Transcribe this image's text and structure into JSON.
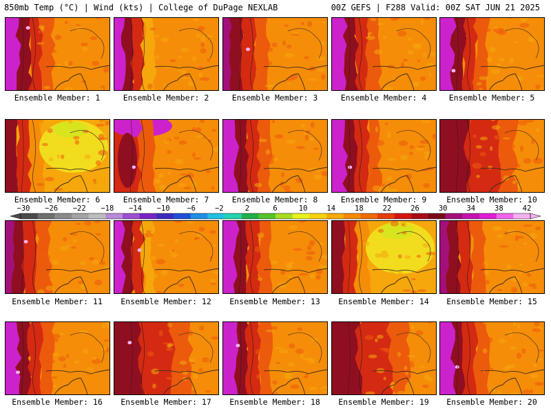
{
  "header": {
    "left": "850mb Temp (°C) | Wind (kts) | College of DuPage NEXLAB",
    "right": "00Z GEFS | F288 Valid: 00Z SAT JUN 21 2025"
  },
  "caption_prefix": "Ensemble Member: ",
  "members": [
    {
      "label": "Ensemble Member: 1",
      "member": 1,
      "style": "warm_orange_west_magenta"
    },
    {
      "label": "Ensemble Member: 2",
      "member": 2,
      "style": "magenta_west_yellow_band"
    },
    {
      "label": "Ensemble Member: 3",
      "member": 3,
      "style": "dark_red_west"
    },
    {
      "label": "Ensemble Member: 4",
      "member": 4,
      "style": "magenta_west_orange"
    },
    {
      "label": "Ensemble Member: 5",
      "member": 5,
      "style": "magenta_west_orange"
    },
    {
      "label": "Ensemble Member: 6",
      "member": 6,
      "style": "yellow_cool_center"
    },
    {
      "label": "Ensemble Member: 7",
      "member": 7,
      "style": "magenta_north_orange"
    },
    {
      "label": "Ensemble Member: 8",
      "member": 8,
      "style": "magenta_west_orange"
    },
    {
      "label": "Ensemble Member: 9",
      "member": 9,
      "style": "magenta_west_orange"
    },
    {
      "label": "Ensemble Member: 10",
      "member": 10,
      "style": "red_dominant"
    },
    {
      "label": "Ensemble Member: 11",
      "member": 11,
      "style": "dark_red_west"
    },
    {
      "label": "Ensemble Member: 12",
      "member": 12,
      "style": "magenta_west_yellow_band"
    },
    {
      "label": "Ensemble Member: 13",
      "member": 13,
      "style": "magenta_west_orange"
    },
    {
      "label": "Ensemble Member: 14",
      "member": 14,
      "style": "yellow_cool_center"
    },
    {
      "label": "Ensemble Member: 15",
      "member": 15,
      "style": "dark_red_west"
    },
    {
      "label": "Ensemble Member: 16",
      "member": 16,
      "style": "magenta_west_orange"
    },
    {
      "label": "Ensemble Member: 17",
      "member": 17,
      "style": "red_dominant"
    },
    {
      "label": "Ensemble Member: 18",
      "member": 18,
      "style": "magenta_west_orange"
    },
    {
      "label": "Ensemble Member: 19",
      "member": 19,
      "style": "red_dominant"
    },
    {
      "label": "Ensemble Member: 20",
      "member": 20,
      "style": "magenta_west_orange"
    }
  ],
  "colorbar": {
    "units": "°C",
    "labels": [
      "−30",
      "−26",
      "−22",
      "−18",
      "−14",
      "−10",
      "−6",
      "−2",
      "2",
      "6",
      "10",
      "14",
      "18",
      "22",
      "26",
      "30",
      "34",
      "38",
      "42"
    ],
    "colors": [
      "#4a4a4a",
      "#6f6f6f",
      "#8a8a8a",
      "#a3a3a3",
      "#bdbdbd",
      "#b98ad9",
      "#9b4fd1",
      "#7a22c4",
      "#3b2bbd",
      "#1e4fd8",
      "#1f8fe6",
      "#22c0e0",
      "#22d4b0",
      "#21b04a",
      "#58c22a",
      "#a8dc22",
      "#e8f21e",
      "#f7d20f",
      "#f7ab09",
      "#f58a06",
      "#f06a08",
      "#e63d0c",
      "#d4150f",
      "#a80c14",
      "#7a0a18",
      "#a4107a",
      "#c512b0",
      "#e01cd5",
      "#f064ec",
      "#f6b0f2"
    ]
  },
  "palette": {
    "magenta": "#cc22cc",
    "dark_red": "#8f0f20",
    "red": "#d42a12",
    "orange_red": "#ec5a0c",
    "orange": "#f58d08",
    "amber": "#f5a70c",
    "yellow": "#f2dc1e",
    "lime": "#d8e41e"
  }
}
